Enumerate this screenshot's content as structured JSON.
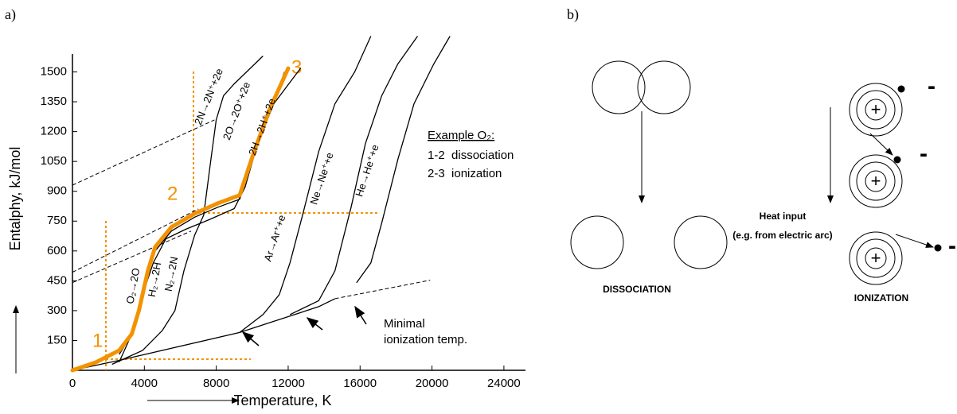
{
  "panel_labels": [
    "a)",
    "b)"
  ],
  "chart_data": {
    "type": "line",
    "xlabel": "Temperature, K",
    "ylabel": "Entalphy, kJ/mol",
    "xlim": [
      0,
      25200
    ],
    "ylim": [
      0,
      1590
    ],
    "xticks": [
      0,
      4000,
      8000,
      12000,
      16000,
      20000,
      24000
    ],
    "yticks": [
      150,
      300,
      450,
      600,
      750,
      900,
      1050,
      1200,
      1350,
      1500
    ],
    "series": [
      {
        "color": "#000000",
        "style": "solid",
        "x": [
          0,
          2600,
          9300,
          13700,
          14600
        ],
        "values": [
          0,
          50,
          190,
          320,
          360
        ]
      },
      {
        "color": "#000000",
        "style": "dashed",
        "x": [
          14600,
          19900
        ],
        "values": [
          360,
          453
        ]
      },
      {
        "color": "#000000",
        "style": "dashed",
        "x": [
          0,
          7900
        ],
        "values": [
          931,
          1259
        ]
      },
      {
        "color": "#000000",
        "style": "dashed",
        "x": [
          0,
          7000
        ],
        "values": [
          493,
          811
        ]
      },
      {
        "color": "#000000",
        "style": "dashed",
        "x": [
          0,
          6600
        ],
        "values": [
          441,
          700
        ]
      },
      {
        "color": "#000000",
        "style": "solid",
        "x": [
          2600,
          3300,
          3700,
          4200,
          4600,
          5500,
          6800,
          8100,
          9300,
          10100,
          11000,
          11800
        ],
        "values": [
          80,
          180,
          300,
          480,
          600,
          700,
          770,
          820,
          860,
          1080,
          1300,
          1500
        ]
      },
      {
        "color": "#000000",
        "style": "solid",
        "x": [
          2600,
          3300,
          3900,
          4500,
          5200,
          6300,
          7600,
          9000,
          9600,
          10300,
          11200,
          12700
        ],
        "values": [
          42,
          182,
          381,
          541,
          661,
          709,
          757,
          813,
          921,
          1141,
          1340,
          1520
        ]
      },
      {
        "color": "#000000",
        "style": "solid",
        "x": [
          2200,
          3900,
          5000,
          5700,
          6200,
          6800,
          7300,
          7700,
          8000,
          8400,
          9000,
          10600
        ],
        "values": [
          30,
          100,
          200,
          300,
          500,
          680,
          780,
          1060,
          1260,
          1380,
          1440,
          1580
        ]
      },
      {
        "color": "#000000",
        "style": "solid",
        "x": [
          9300,
          10600,
          11500,
          12100,
          12800,
          13700,
          14600,
          15700,
          16600
        ],
        "values": [
          190,
          280,
          380,
          540,
          780,
          1100,
          1340,
          1500,
          1680
        ]
      },
      {
        "color": "#000000",
        "style": "solid",
        "x": [
          12100,
          13700,
          14600,
          15500,
          16300,
          17200,
          18100,
          19200
        ],
        "values": [
          280,
          350,
          500,
          820,
          1140,
          1380,
          1540,
          1680
        ]
      },
      {
        "color": "#000000",
        "style": "solid",
        "x": [
          15800,
          16600,
          17200,
          18100,
          19000,
          20100,
          21000
        ],
        "values": [
          440,
          540,
          740,
          1060,
          1340,
          1540,
          1680
        ]
      },
      {
        "color": "#f39200",
        "style": "thick",
        "x": [
          0,
          1300,
          2600,
          3300,
          3700,
          4200,
          4600,
          5500,
          6800,
          8100,
          9300,
          10100,
          11000,
          12000
        ],
        "values": [
          0,
          40,
          100,
          182,
          301,
          501,
          620,
          720,
          788,
          840,
          880,
          1099,
          1319,
          1518
        ]
      }
    ],
    "curve_labels": [
      "2N→2N⁺+2e",
      "2O→2O⁺+2e",
      "2H→2H⁺+2e",
      "O₂→2O",
      "H₂→2H",
      "N₂→2N",
      "Ar→Ar⁺+e",
      "Ne→Ne⁺+e",
      "He→He⁺+e"
    ],
    "annotations": {
      "markers": [
        "1",
        "2",
        "3"
      ],
      "example": "Example O₂:",
      "steps": [
        "1-2  dissociation",
        "2-3  ionization"
      ],
      "minimal": [
        "Minimal",
        "ionization temp."
      ]
    }
  },
  "diagram": {
    "heat": [
      "Heat input",
      "(e.g. from electric arc)"
    ],
    "dissociation": "DISSOCIATION",
    "ionization": "IONIZATION",
    "plus": [
      "+",
      "+",
      "+"
    ],
    "minus": [
      "-",
      "-",
      "-"
    ]
  }
}
